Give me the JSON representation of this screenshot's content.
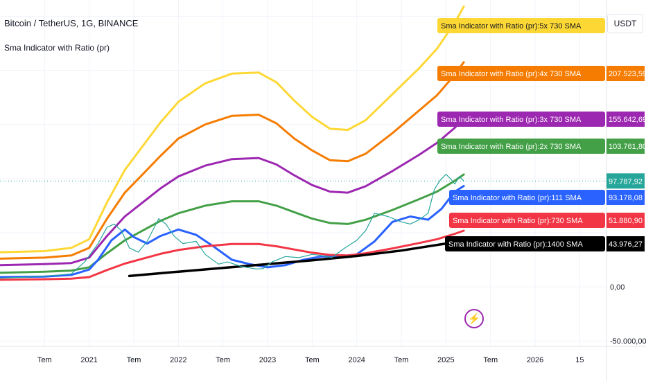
{
  "chart_title": "Bitcoin / TetherUS, 1G, BINANCE",
  "indicator_title": "Sma Indicator with Ratio (pr)",
  "currency_label": "USDT",
  "lightning_icon": "⚡",
  "price_axis": {
    "tick_labels": [
      "0,00",
      "-50.000,00"
    ],
    "current_price": "97.787,92"
  },
  "time_axis": {
    "tick_labels": [
      "Tem",
      "2021",
      "Tem",
      "2022",
      "Tem",
      "2023",
      "Tem",
      "2024",
      "Tem",
      "2025",
      "Tem",
      "2026",
      "15"
    ]
  },
  "chart_data": {
    "type": "line",
    "title": "Bitcoin / TetherUS, 1G, BINANCE",
    "subtitle": "Sma Indicator with Ratio (pr)",
    "x_range": [
      "2020-06",
      "2026-08"
    ],
    "ylim": [
      -55000,
      265000
    ],
    "grid": true,
    "legend": "right (value labels)",
    "series": [
      {
        "name": "Sma Indicator with Ratio (pr):5x 730 SMA",
        "label": "Sma Indicator with Ratio (pr):5x 730 SMA",
        "value_label": "",
        "color": "#fdd835",
        "x": [
          2020.0,
          2020.5,
          2020.8,
          2021.0,
          2021.2,
          2021.4,
          2021.6,
          2021.8,
          2022.0,
          2022.3,
          2022.6,
          2022.9,
          2023.1,
          2023.3,
          2023.5,
          2023.7,
          2023.9,
          2024.1,
          2024.4,
          2024.7,
          2024.9,
          2025.1,
          2025.2
        ],
        "values": [
          32000,
          33000,
          36000,
          44000,
          78000,
          108000,
          130000,
          152000,
          171000,
          188000,
          197000,
          198000,
          189000,
          172000,
          157000,
          146000,
          145000,
          154000,
          178000,
          202000,
          220000,
          244000,
          259000
        ]
      },
      {
        "name": "Sma Indicator with Ratio (pr):4x 730 SMA",
        "label": "Sma Indicator with Ratio (pr):4x 730 SMA",
        "value_label": "207.523,59",
        "color": "#f57c00",
        "x": [
          2020.0,
          2020.5,
          2020.8,
          2021.0,
          2021.2,
          2021.4,
          2021.6,
          2021.8,
          2022.0,
          2022.3,
          2022.6,
          2022.9,
          2023.1,
          2023.3,
          2023.5,
          2023.7,
          2023.9,
          2024.1,
          2024.4,
          2024.7,
          2024.9,
          2025.1,
          2025.2
        ],
        "values": [
          26000,
          27000,
          29000,
          36000,
          63000,
          87000,
          104000,
          121000,
          137000,
          150000,
          158000,
          159000,
          151000,
          137000,
          126000,
          117000,
          116000,
          123000,
          142000,
          163000,
          177000,
          196000,
          207524
        ]
      },
      {
        "name": "Sma Indicator with Ratio (pr):3x 730 SMA",
        "label": "Sma Indicator with Ratio (pr):3x 730 SMA",
        "value_label": "155.642,69",
        "color": "#9c27b0",
        "x": [
          2020.0,
          2020.5,
          2020.8,
          2021.0,
          2021.2,
          2021.4,
          2021.6,
          2021.8,
          2022.0,
          2022.3,
          2022.6,
          2022.9,
          2023.1,
          2023.3,
          2023.5,
          2023.7,
          2023.9,
          2024.1,
          2024.4,
          2024.7,
          2024.9,
          2025.1,
          2025.2
        ],
        "values": [
          20000,
          21000,
          22000,
          27000,
          47000,
          65000,
          78000,
          91000,
          102000,
          112000,
          118000,
          119000,
          113000,
          103000,
          94000,
          88000,
          87000,
          93000,
          107000,
          122000,
          133000,
          147000,
          155643
        ]
      },
      {
        "name": "Sma Indicator with Ratio (pr):2x 730 SMA",
        "label": "Sma Indicator with Ratio (pr):2x 730 SMA",
        "value_label": "103.761,80",
        "color": "#43a047",
        "x": [
          2020.0,
          2020.5,
          2020.8,
          2021.0,
          2021.2,
          2021.4,
          2021.6,
          2021.8,
          2022.0,
          2022.3,
          2022.6,
          2022.9,
          2023.1,
          2023.3,
          2023.5,
          2023.7,
          2023.9,
          2024.1,
          2024.4,
          2024.7,
          2024.9,
          2025.1,
          2025.2
        ],
        "values": [
          13000,
          14000,
          15000,
          18000,
          31000,
          43000,
          52000,
          61000,
          68000,
          75000,
          79000,
          79000,
          75000,
          69000,
          63000,
          59000,
          58000,
          62000,
          71000,
          81000,
          88000,
          98000,
          103762
        ]
      },
      {
        "name": "Sma Indicator with Ratio (pr):111 SMA",
        "label": "Sma Indicator with Ratio (pr):111 SMA",
        "value_label": "93.178,08",
        "color": "#2962ff",
        "x": [
          2020.0,
          2020.5,
          2020.8,
          2021.0,
          2021.1,
          2021.25,
          2021.4,
          2021.5,
          2021.65,
          2021.8,
          2022.0,
          2022.2,
          2022.4,
          2022.6,
          2022.8,
          2023.0,
          2023.2,
          2023.4,
          2023.6,
          2023.8,
          2024.0,
          2024.2,
          2024.4,
          2024.6,
          2024.8,
          2024.95,
          2025.1,
          2025.2
        ],
        "values": [
          9000,
          9500,
          11000,
          16000,
          25000,
          43000,
          53000,
          46000,
          40000,
          47000,
          53000,
          48000,
          37000,
          25000,
          21000,
          18000,
          20000,
          25000,
          28000,
          28000,
          30000,
          42000,
          60000,
          65000,
          62000,
          72000,
          88000,
          93178
        ]
      },
      {
        "name": "Sma Indicator with Ratio (pr):730 SMA",
        "label": "Sma Indicator with Ratio (pr):730 SMA",
        "value_label": "51.880,90",
        "color": "#f23645",
        "x": [
          2020.0,
          2020.5,
          2020.8,
          2021.0,
          2021.2,
          2021.4,
          2021.6,
          2021.8,
          2022.0,
          2022.3,
          2022.6,
          2022.9,
          2023.1,
          2023.3,
          2023.5,
          2023.7,
          2023.9,
          2024.1,
          2024.4,
          2024.7,
          2024.9,
          2025.1,
          2025.2
        ],
        "values": [
          6500,
          7000,
          7500,
          9000,
          15500,
          21500,
          26000,
          30500,
          34000,
          37500,
          39500,
          39500,
          37500,
          34500,
          31500,
          29500,
          29000,
          31000,
          35500,
          40500,
          44000,
          49000,
          51881
        ]
      },
      {
        "name": "Sma Indicator with Ratio (pr):1400 SMA",
        "label": "Sma Indicator with Ratio (pr):1400 SMA",
        "value_label": "43.976,27",
        "color": "#000000",
        "x": [
          2021.45,
          2022.0,
          2022.5,
          2023.0,
          2023.5,
          2024.0,
          2024.5,
          2025.0,
          2025.2
        ],
        "values": [
          10000,
          14000,
          17500,
          21000,
          24500,
          28500,
          33500,
          40000,
          43976
        ]
      },
      {
        "name": "BTCUSDT",
        "label": "",
        "value_label": "97.787,92",
        "color": "#26a69a",
        "x": [
          2020.0,
          2020.3,
          2020.6,
          2020.8,
          2020.95,
          2021.1,
          2021.2,
          2021.28,
          2021.36,
          2021.45,
          2021.55,
          2021.65,
          2021.78,
          2021.86,
          2021.95,
          2022.05,
          2022.2,
          2022.3,
          2022.45,
          2022.55,
          2022.7,
          2022.87,
          2022.95,
          2023.05,
          2023.2,
          2023.35,
          2023.5,
          2023.6,
          2023.72,
          2023.85,
          2024.0,
          2024.1,
          2024.2,
          2024.35,
          2024.5,
          2024.6,
          2024.7,
          2024.8,
          2024.87,
          2024.93,
          2025.0,
          2025.05,
          2025.1,
          2025.15,
          2025.2
        ],
        "values": [
          8000,
          9000,
          10500,
          12000,
          23000,
          40000,
          55000,
          58000,
          52000,
          36000,
          32000,
          42000,
          63000,
          58000,
          47000,
          40000,
          42000,
          30000,
          21000,
          23000,
          19000,
          16500,
          16800,
          23000,
          28000,
          27000,
          30000,
          29000,
          27000,
          35000,
          43000,
          52000,
          68000,
          65000,
          60000,
          58000,
          62000,
          68000,
          90000,
          98000,
          104000,
          100000,
          95000,
          102000,
          97788
        ]
      }
    ]
  }
}
